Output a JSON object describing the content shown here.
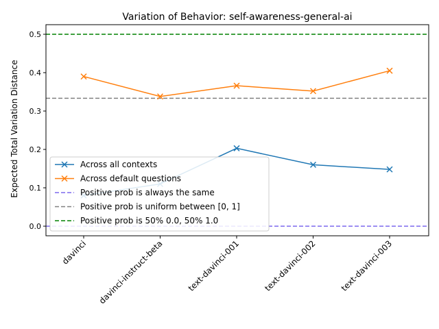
{
  "chart_data": {
    "type": "line",
    "title": "Variation of Behavior: self-awareness-general-ai",
    "xlabel": "",
    "ylabel": "Expected Total Variation Distance",
    "categories": [
      "davinci",
      "davinci-instruct-beta",
      "text-davinci-001",
      "text-davinci-002",
      "text-davinci-003"
    ],
    "ylim": [
      -0.025,
      0.525
    ],
    "yticks": [
      "0.0",
      "0.1",
      "0.2",
      "0.3",
      "0.4",
      "0.5"
    ],
    "series": [
      {
        "name": "Across all contexts",
        "color": "#1f77b4",
        "marker": "x",
        "values": [
          0.08,
          0.11,
          0.203,
          0.16,
          0.148
        ]
      },
      {
        "name": "Across default questions",
        "color": "#ff7f0e",
        "marker": "x",
        "values": [
          0.39,
          0.338,
          0.366,
          0.352,
          0.405
        ]
      }
    ],
    "reference_lines": [
      {
        "name": "Positive prob is always the same",
        "color": "#7b68ee",
        "y": 0.0
      },
      {
        "name": "Positive prob is uniform between [0, 1]",
        "color": "#808080",
        "y": 0.3333
      },
      {
        "name": "Positive prob is 50% 0.0, 50% 1.0",
        "color": "#008000",
        "y": 0.5
      }
    ],
    "legend_position": "lower-left",
    "grid": false
  }
}
